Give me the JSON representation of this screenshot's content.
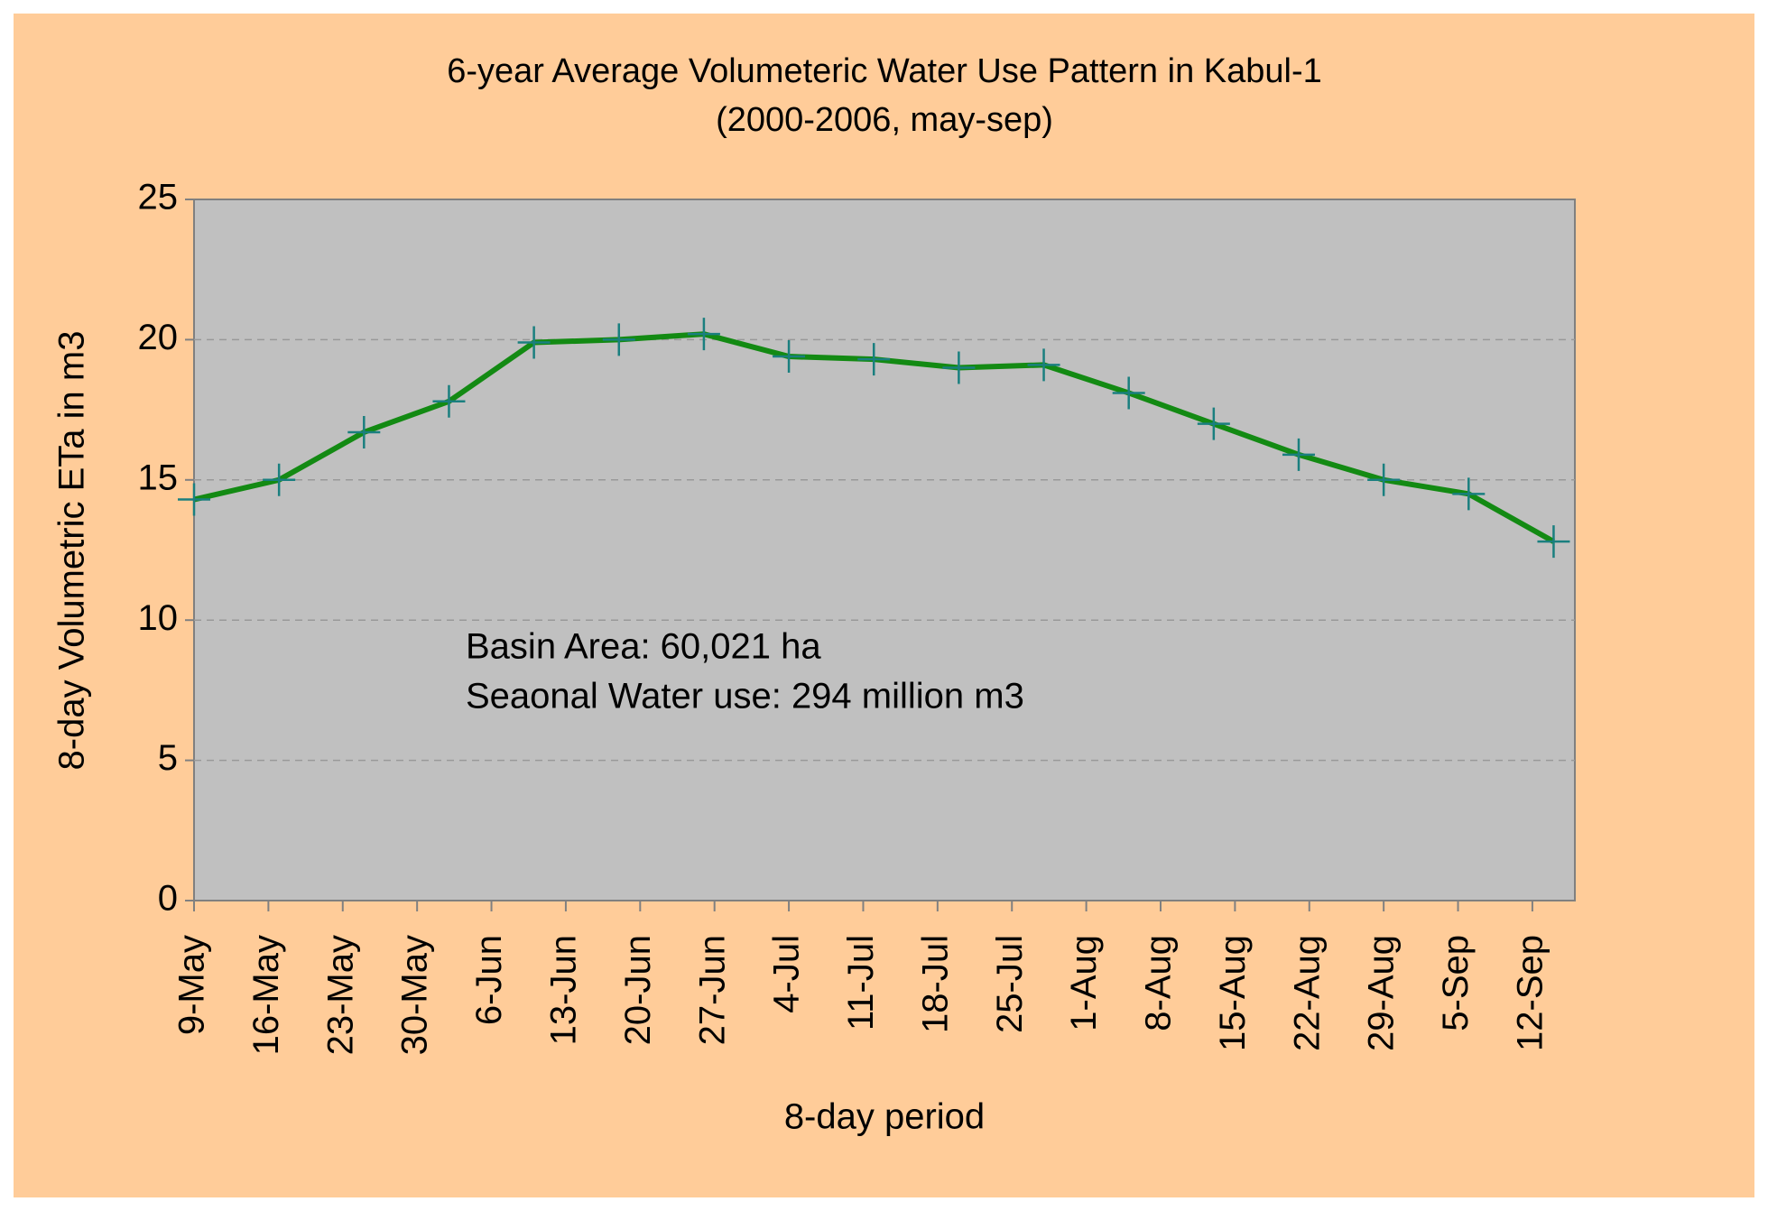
{
  "chart_data": {
    "type": "line",
    "title": "6-year Average Volumeteric Water Use Pattern in Kabul-1",
    "subtitle": "(2000-2006, may-sep)",
    "x_label": "8-day period",
    "y_label": "8-day Volumetric ETa in m3",
    "annotations": [
      "Basin Area: 60,021 ha",
      "Seaonal Water use: 294 million m3"
    ],
    "x": [
      "05-09",
      "05-17",
      "05-25",
      "06-02",
      "06-10",
      "06-18",
      "06-26",
      "07-04",
      "07-12",
      "07-20",
      "07-28",
      "08-05",
      "08-13",
      "08-21",
      "08-29",
      "09-06",
      "09-14"
    ],
    "series": [
      {
        "name": "8-day Volumetric ETa",
        "color": "#138a13",
        "marker_color": "#1a7f7f",
        "values": [
          14.3,
          15.0,
          16.7,
          17.8,
          19.9,
          20.0,
          20.2,
          19.4,
          19.3,
          19.0,
          19.1,
          18.1,
          17.0,
          15.9,
          15.0,
          14.5,
          12.8
        ]
      }
    ],
    "xlim": [
      "05-09",
      "09-16"
    ],
    "xticks": [
      {
        "value": "05-09",
        "label": "9-May"
      },
      {
        "value": "05-16",
        "label": "16-May"
      },
      {
        "value": "05-23",
        "label": "23-May"
      },
      {
        "value": "05-30",
        "label": "30-May"
      },
      {
        "value": "06-06",
        "label": "6-Jun"
      },
      {
        "value": "06-13",
        "label": "13-Jun"
      },
      {
        "value": "06-20",
        "label": "20-Jun"
      },
      {
        "value": "06-27",
        "label": "27-Jun"
      },
      {
        "value": "07-04",
        "label": "4-Jul"
      },
      {
        "value": "07-11",
        "label": "11-Jul"
      },
      {
        "value": "07-18",
        "label": "18-Jul"
      },
      {
        "value": "07-25",
        "label": "25-Jul"
      },
      {
        "value": "08-01",
        "label": "1-Aug"
      },
      {
        "value": "08-08",
        "label": "8-Aug"
      },
      {
        "value": "08-15",
        "label": "15-Aug"
      },
      {
        "value": "08-22",
        "label": "22-Aug"
      },
      {
        "value": "08-29",
        "label": "29-Aug"
      },
      {
        "value": "09-05",
        "label": "5-Sep"
      },
      {
        "value": "09-12",
        "label": "12-Sep"
      }
    ],
    "ylim": [
      0,
      25
    ],
    "yticks": [
      0,
      5,
      10,
      15,
      20,
      25
    ],
    "grid": true,
    "background_color": "#ffcc99",
    "plot_color": "#c0c0c0"
  }
}
